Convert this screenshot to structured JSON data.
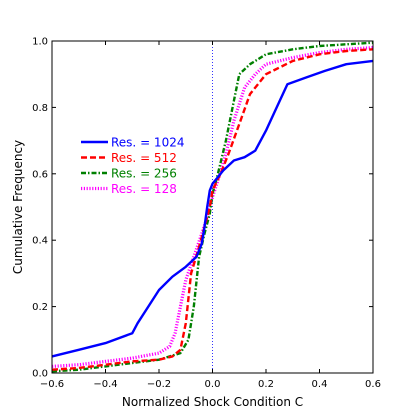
{
  "chart_data": {
    "type": "line",
    "xlabel": "Normalized Shock Condition C",
    "ylabel": "Cumulative Frequency",
    "xlim": [
      -0.6,
      0.6
    ],
    "ylim": [
      0.0,
      1.0
    ],
    "x_ticks": [
      "−0.6",
      "−0.4",
      "−0.2",
      "0.0",
      "0.2",
      "0.4",
      "0.6"
    ],
    "y_ticks": [
      "0.0",
      "0.2",
      "0.4",
      "0.6",
      "0.8",
      "1.0"
    ],
    "grid": false,
    "legend_position": "center-left",
    "reference_line": {
      "x": 0.0,
      "color": "#0000ff",
      "style": "dotted"
    },
    "series": [
      {
        "name": "Res. = 1024",
        "color": "#0000ff",
        "style": "solid",
        "points": [
          [
            -0.6,
            0.05
          ],
          [
            -0.5,
            0.07
          ],
          [
            -0.4,
            0.09
          ],
          [
            -0.3,
            0.12
          ],
          [
            -0.28,
            0.15
          ],
          [
            -0.24,
            0.2
          ],
          [
            -0.2,
            0.25
          ],
          [
            -0.15,
            0.29
          ],
          [
            -0.1,
            0.32
          ],
          [
            -0.06,
            0.35
          ],
          [
            -0.04,
            0.39
          ],
          [
            -0.03,
            0.44
          ],
          [
            -0.02,
            0.5
          ],
          [
            -0.01,
            0.55
          ],
          [
            0.0,
            0.57
          ],
          [
            0.02,
            0.59
          ],
          [
            0.04,
            0.61
          ],
          [
            0.08,
            0.64
          ],
          [
            0.12,
            0.65
          ],
          [
            0.16,
            0.67
          ],
          [
            0.2,
            0.73
          ],
          [
            0.24,
            0.8
          ],
          [
            0.28,
            0.87
          ],
          [
            0.35,
            0.89
          ],
          [
            0.42,
            0.91
          ],
          [
            0.5,
            0.93
          ],
          [
            0.6,
            0.94
          ]
        ]
      },
      {
        "name": "Res. = 512",
        "color": "#ff0000",
        "style": "dashed",
        "points": [
          [
            -0.6,
            0.01
          ],
          [
            -0.5,
            0.015
          ],
          [
            -0.4,
            0.025
          ],
          [
            -0.3,
            0.035
          ],
          [
            -0.2,
            0.04
          ],
          [
            -0.15,
            0.05
          ],
          [
            -0.12,
            0.07
          ],
          [
            -0.1,
            0.15
          ],
          [
            -0.08,
            0.3
          ],
          [
            -0.05,
            0.38
          ],
          [
            -0.03,
            0.44
          ],
          [
            -0.01,
            0.5
          ],
          [
            0.0,
            0.55
          ],
          [
            0.03,
            0.6
          ],
          [
            0.06,
            0.66
          ],
          [
            0.1,
            0.75
          ],
          [
            0.14,
            0.84
          ],
          [
            0.2,
            0.9
          ],
          [
            0.3,
            0.94
          ],
          [
            0.4,
            0.96
          ],
          [
            0.5,
            0.97
          ],
          [
            0.6,
            0.975
          ]
        ]
      },
      {
        "name": "Res. = 256",
        "color": "#008000",
        "style": "dashdot",
        "points": [
          [
            -0.6,
            0.005
          ],
          [
            -0.5,
            0.01
          ],
          [
            -0.4,
            0.02
          ],
          [
            -0.3,
            0.03
          ],
          [
            -0.2,
            0.04
          ],
          [
            -0.12,
            0.06
          ],
          [
            -0.09,
            0.1
          ],
          [
            -0.07,
            0.2
          ],
          [
            -0.05,
            0.35
          ],
          [
            -0.03,
            0.42
          ],
          [
            -0.01,
            0.48
          ],
          [
            0.0,
            0.54
          ],
          [
            0.02,
            0.6
          ],
          [
            0.05,
            0.7
          ],
          [
            0.08,
            0.82
          ],
          [
            0.1,
            0.9
          ],
          [
            0.14,
            0.93
          ],
          [
            0.2,
            0.96
          ],
          [
            0.3,
            0.975
          ],
          [
            0.4,
            0.985
          ],
          [
            0.5,
            0.99
          ],
          [
            0.6,
            0.995
          ]
        ]
      },
      {
        "name": "Res. = 128",
        "color": "#ff00ff",
        "style": "dotted",
        "points": [
          [
            -0.6,
            0.02
          ],
          [
            -0.5,
            0.025
          ],
          [
            -0.4,
            0.035
          ],
          [
            -0.3,
            0.045
          ],
          [
            -0.2,
            0.06
          ],
          [
            -0.16,
            0.08
          ],
          [
            -0.14,
            0.12
          ],
          [
            -0.12,
            0.2
          ],
          [
            -0.1,
            0.28
          ],
          [
            -0.07,
            0.35
          ],
          [
            -0.04,
            0.42
          ],
          [
            -0.02,
            0.47
          ],
          [
            0.0,
            0.53
          ],
          [
            0.02,
            0.58
          ],
          [
            0.05,
            0.66
          ],
          [
            0.08,
            0.76
          ],
          [
            0.12,
            0.86
          ],
          [
            0.16,
            0.9
          ],
          [
            0.2,
            0.93
          ],
          [
            0.3,
            0.95
          ],
          [
            0.4,
            0.965
          ],
          [
            0.5,
            0.975
          ],
          [
            0.6,
            0.98
          ]
        ]
      }
    ]
  }
}
